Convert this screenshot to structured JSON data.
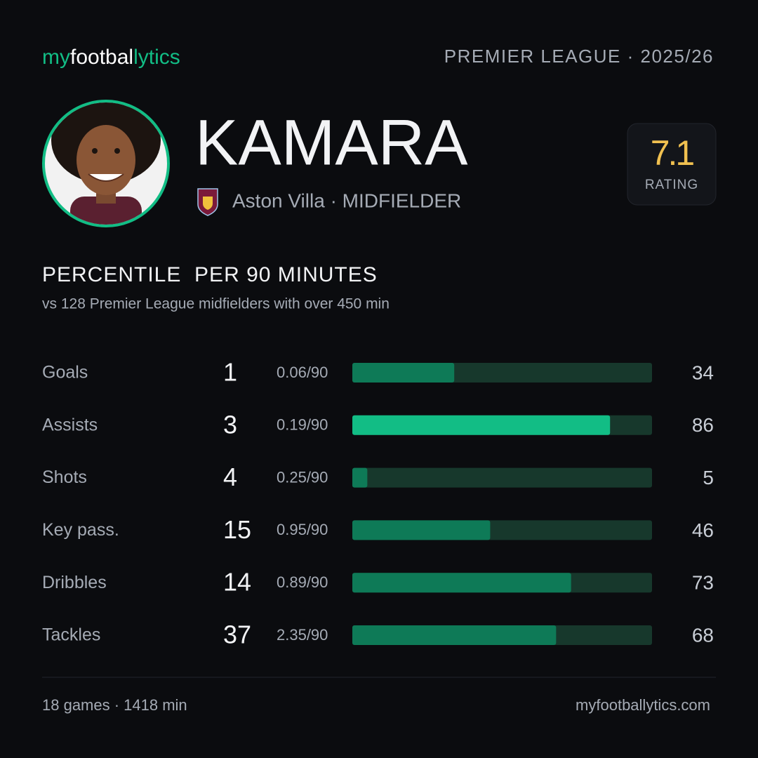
{
  "header": {
    "logo": [
      "my",
      "footbal",
      "lytics"
    ],
    "competition": "PREMIER LEAGUE · 2025/26"
  },
  "player": {
    "name": "KAMARA",
    "details": "Aston Villa · MIDFIELDER",
    "rating": "7.1",
    "rating_label": "RATING"
  },
  "chart_data": {
    "type": "bar",
    "title": "PERCENTILE  PER 90 MINUTES",
    "subtitle": "vs 128 Premier League midfielders with over 450 min",
    "xlim": [
      0,
      100
    ],
    "categories": [
      "Goals",
      "Assists",
      "Shots",
      "Key pass.",
      "Dribbles",
      "Tackles"
    ],
    "totals": [
      1,
      3,
      4,
      15,
      14,
      37
    ],
    "per90": [
      "0.06/90",
      "0.19/90",
      "0.25/90",
      "0.95/90",
      "0.89/90",
      "2.35/90"
    ],
    "values": [
      34,
      86,
      5,
      46,
      73,
      68
    ],
    "colors": [
      "#0e7a57",
      "#12bd85",
      "#0e7a57",
      "#0e7a57",
      "#0e7a57",
      "#0e7a57"
    ],
    "track_color": "#17382c"
  },
  "footer": {
    "summary": "18 games · 1418 min",
    "site": "myfootballytics.com"
  }
}
